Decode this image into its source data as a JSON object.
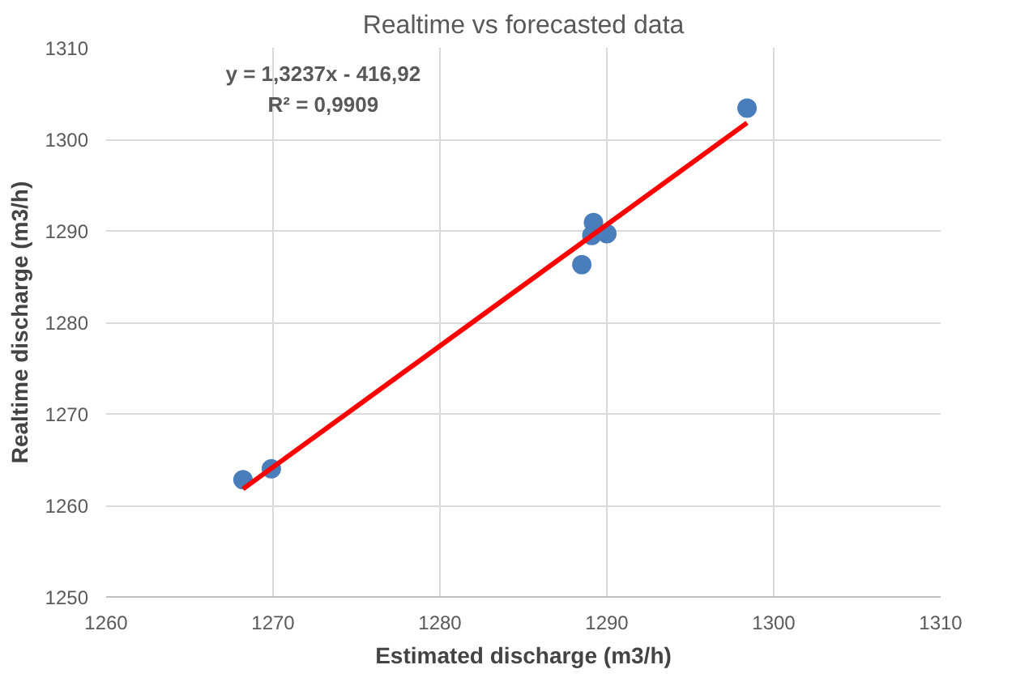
{
  "chart_data": {
    "type": "scatter",
    "title": "Realtime vs forecasted data",
    "xlabel": "Estimated discharge (m3/h)",
    "ylabel": "Realtime discharge (m3/h)",
    "series": [
      {
        "marker": "circle",
        "color": "#4a7ebb",
        "x": [
          1268.2,
          1269.9,
          1288.5,
          1289.2,
          1289.1,
          1290.0,
          1298.4
        ],
        "values": [
          1262.8,
          1264.0,
          1286.3,
          1290.9,
          1289.5,
          1289.7,
          1303.4
        ]
      },
      {
        "type": "line",
        "color": "#ff0000",
        "x": [
          1268.2,
          1298.4
        ],
        "values": [
          1261.8,
          1301.8
        ]
      }
    ],
    "annotations": [
      "y = 1,3237x - 416,92",
      "R² = 0,9909"
    ],
    "xlim": [
      1260,
      1310
    ],
    "xticks": [
      1260,
      1270,
      1280,
      1290,
      1300,
      1310
    ],
    "ylim": [
      1250,
      1310
    ],
    "yticks": [
      1250,
      1260,
      1270,
      1280,
      1290,
      1300,
      1310
    ],
    "grid": true
  }
}
